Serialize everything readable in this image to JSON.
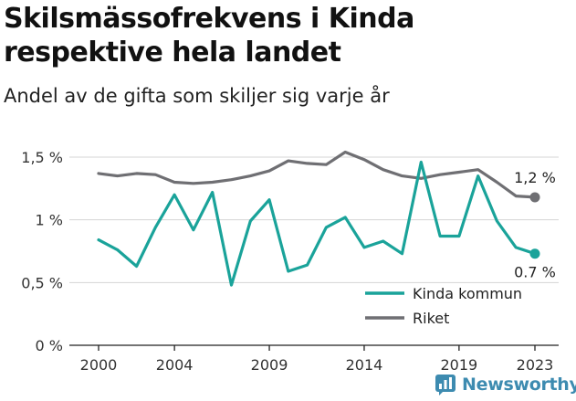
{
  "header": {
    "title": "Skilsmässofrekvens i Kinda respektive hela landet",
    "subtitle": "Andel av de gifta som skiljer sig varje år"
  },
  "brand": {
    "name": "Newsworthy",
    "icon": "newsworthy-logo-icon",
    "color": "#3d8bb0"
  },
  "chart_data": {
    "type": "line",
    "x": [
      2000,
      2001,
      2002,
      2003,
      2004,
      2005,
      2006,
      2007,
      2008,
      2009,
      2010,
      2011,
      2012,
      2013,
      2014,
      2015,
      2016,
      2017,
      2018,
      2019,
      2020,
      2021,
      2022,
      2023
    ],
    "x_ticks": [
      2000,
      2004,
      2009,
      2014,
      2019,
      2023
    ],
    "x_tick_labels": [
      "2000",
      "2004",
      "2009",
      "2014",
      "2019",
      "2023"
    ],
    "ylim": [
      0,
      1.5
    ],
    "y_ticks": [
      0,
      0.5,
      1,
      1.5
    ],
    "y_tick_labels": [
      "0 %",
      "0,5 %",
      "1 %",
      "1,5 %"
    ],
    "grid": "horizontal",
    "legend_position": "bottom-right",
    "series": [
      {
        "name": "Kinda kommun",
        "color": "#1aa39a",
        "end_label": "0.7 %",
        "values": [
          0.84,
          0.76,
          0.63,
          0.94,
          1.2,
          0.92,
          1.22,
          0.48,
          0.99,
          1.16,
          0.59,
          0.64,
          0.94,
          1.02,
          0.78,
          0.83,
          0.73,
          1.46,
          0.87,
          0.87,
          1.35,
          0.99,
          0.78,
          0.73
        ]
      },
      {
        "name": "Riket",
        "color": "#6f6f73",
        "end_label": "1,2 %",
        "values": [
          1.37,
          1.35,
          1.37,
          1.36,
          1.3,
          1.29,
          1.3,
          1.32,
          1.35,
          1.39,
          1.47,
          1.45,
          1.44,
          1.54,
          1.48,
          1.4,
          1.35,
          1.33,
          1.36,
          1.38,
          1.4,
          1.3,
          1.19,
          1.18
        ]
      }
    ]
  }
}
